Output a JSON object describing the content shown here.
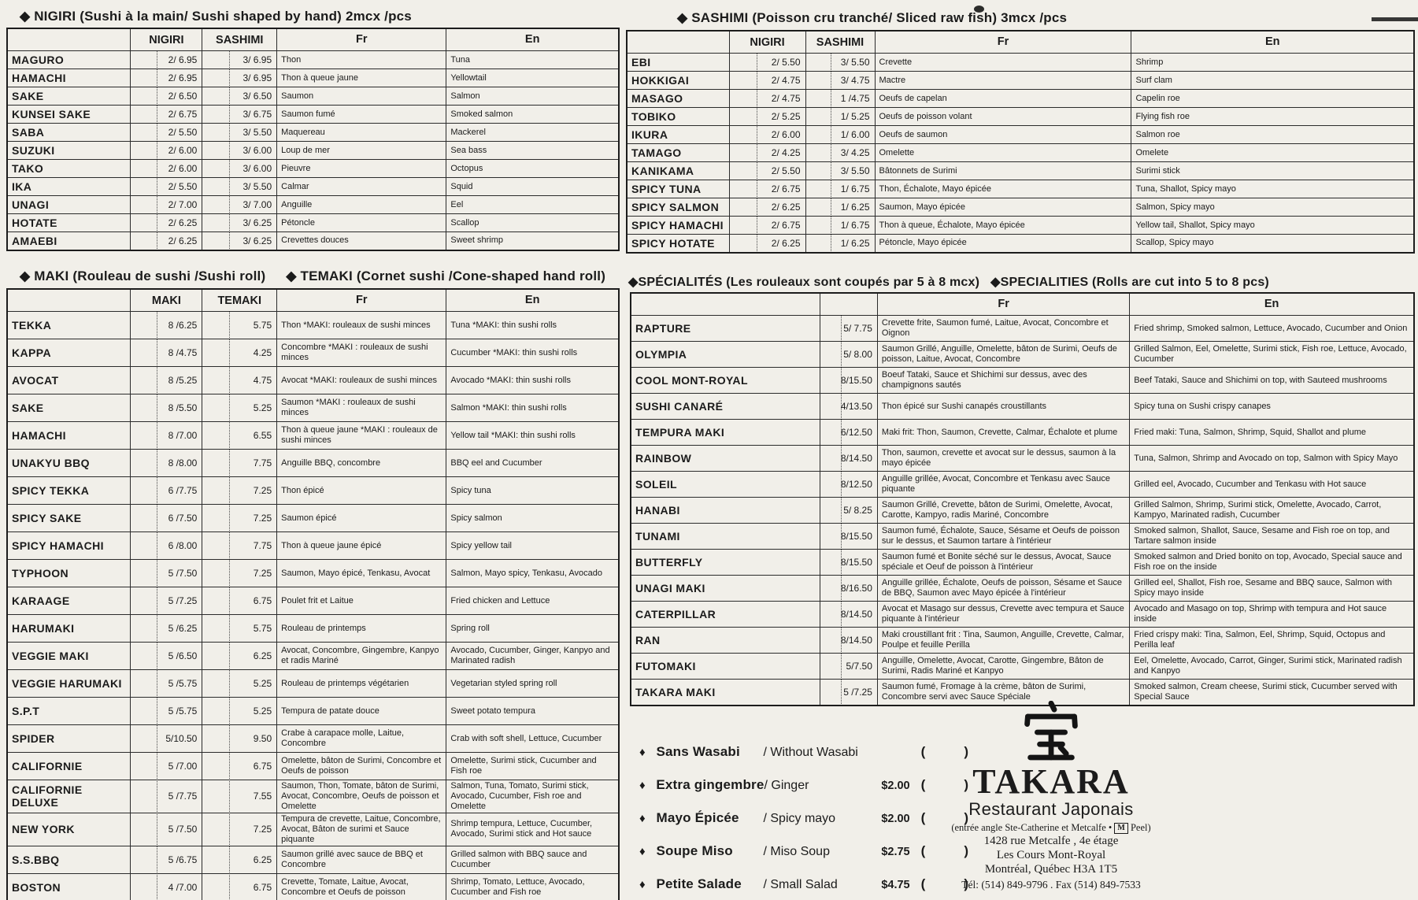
{
  "colors": {
    "paper": "#f1efe9",
    "ink": "#1b1b1b"
  },
  "tables": {
    "nigiri": {
      "title": "◆ NIGIRI (Sushi à la main/ Sushi shaped by hand) 2mcx /pcs",
      "columns": [
        "",
        "NIGIRI",
        "SASHIMI",
        "Fr",
        "En"
      ],
      "keys": [
        "name",
        "p1",
        "p2",
        "fr",
        "en"
      ],
      "rows": [
        {
          "name": "MAGURO",
          "p1": "2/ 6.95",
          "p2": "3/ 6.95",
          "fr": "Thon",
          "en": "Tuna"
        },
        {
          "name": "HAMACHI",
          "p1": "2/ 6.95",
          "p2": "3/ 6.95",
          "fr": "Thon à queue jaune",
          "en": "Yellowtail"
        },
        {
          "name": "SAKE",
          "p1": "2/ 6.50",
          "p2": "3/ 6.50",
          "fr": "Saumon",
          "en": "Salmon"
        },
        {
          "name": "KUNSEI SAKE",
          "p1": "2/ 6.75",
          "p2": "3/ 6.75",
          "fr": "Saumon fumé",
          "en": "Smoked salmon"
        },
        {
          "name": "SABA",
          "p1": "2/ 5.50",
          "p2": "3/ 5.50",
          "fr": "Maquereau",
          "en": "Mackerel"
        },
        {
          "name": "SUZUKI",
          "p1": "2/ 6.00",
          "p2": "3/ 6.00",
          "fr": "Loup de mer",
          "en": "Sea bass"
        },
        {
          "name": "TAKO",
          "p1": "2/ 6.00",
          "p2": "3/ 6.00",
          "fr": "Pieuvre",
          "en": "Octopus"
        },
        {
          "name": "IKA",
          "p1": "2/ 5.50",
          "p2": "3/ 5.50",
          "fr": "Calmar",
          "en": "Squid"
        },
        {
          "name": "UNAGI",
          "p1": "2/ 7.00",
          "p2": "3/ 7.00",
          "fr": "Anguille",
          "en": "Eel"
        },
        {
          "name": "HOTATE",
          "p1": "2/ 6.25",
          "p2": "3/ 6.25",
          "fr": "Pétoncle",
          "en": "Scallop"
        },
        {
          "name": "AMAEBI",
          "p1": "2/ 6.25",
          "p2": "3/ 6.25",
          "fr": "Crevettes douces",
          "en": "Sweet shrimp"
        }
      ]
    },
    "sashimi": {
      "title": "◆ SASHIMI (Poisson cru tranché/ Sliced raw fish) 3mcx /pcs",
      "columns": [
        "",
        "NIGIRI",
        "SASHIMI",
        "Fr",
        "En"
      ],
      "keys": [
        "name",
        "p1",
        "p2",
        "fr",
        "en"
      ],
      "rows": [
        {
          "name": "EBI",
          "p1": "2/ 5.50",
          "p2": "3/ 5.50",
          "fr": "Crevette",
          "en": "Shrimp"
        },
        {
          "name": "HOKKIGAI",
          "p1": "2/ 4.75",
          "p2": "3/ 4.75",
          "fr": "Mactre",
          "en": "Surf clam"
        },
        {
          "name": "MASAGO",
          "p1": "2/ 4.75",
          "p2": "1 /4.75",
          "fr": "Oeufs de capelan",
          "en": "Capelin roe"
        },
        {
          "name": "TOBIKO",
          "p1": "2/ 5.25",
          "p2": "1/ 5.25",
          "fr": "Oeufs de poisson volant",
          "en": "Flying fish roe"
        },
        {
          "name": "IKURA",
          "p1": "2/ 6.00",
          "p2": "1/ 6.00",
          "fr": "Oeufs de saumon",
          "en": "Salmon roe"
        },
        {
          "name": "TAMAGO",
          "p1": "2/ 4.25",
          "p2": "3/ 4.25",
          "fr": "Omelette",
          "en": "Omelete"
        },
        {
          "name": "KANIKAMA",
          "p1": "2/ 5.50",
          "p2": "3/ 5.50",
          "fr": "Bâtonnets de Surimi",
          "en": "Surimi stick"
        },
        {
          "name": "SPICY TUNA",
          "p1": "2/ 6.75",
          "p2": "1/ 6.75",
          "fr": "Thon, Échalote, Mayo épicée",
          "en": "Tuna, Shallot, Spicy mayo"
        },
        {
          "name": "SPICY SALMON",
          "p1": "2/ 6.25",
          "p2": "1/ 6.25",
          "fr": "Saumon, Mayo épicée",
          "en": "Salmon, Spicy mayo"
        },
        {
          "name": "SPICY HAMACHI",
          "p1": "2/ 6.75",
          "p2": "1/ 6.75",
          "fr": "Thon à queue, Échalote, Mayo épicée",
          "en": "Yellow tail, Shallot, Spicy mayo"
        },
        {
          "name": "SPICY HOTATE",
          "p1": "2/ 6.25",
          "p2": "1/ 6.25",
          "fr": "Pétoncle, Mayo épicée",
          "en": "Scallop, Spicy mayo"
        }
      ]
    },
    "maki": {
      "title_left": "◆ MAKI (Rouleau de sushi /Sushi roll)",
      "title_right": "◆ TEMAKI (Cornet sushi /Cone-shaped hand roll)",
      "columns": [
        "",
        "MAKI",
        "TEMAKI",
        "Fr",
        "En"
      ],
      "keys": [
        "name",
        "p1",
        "p2",
        "fr",
        "en"
      ],
      "rows": [
        {
          "name": "TEKKA",
          "p1": "8 /6.25",
          "p2": "5.75",
          "fr": "Thon *MAKI: rouleaux de sushi minces",
          "en": "Tuna *MAKI: thin sushi rolls"
        },
        {
          "name": "KAPPA",
          "p1": "8 /4.75",
          "p2": "4.25",
          "fr": "Concombre *MAKI : rouleaux de sushi minces",
          "en": "Cucumber *MAKI: thin sushi rolls"
        },
        {
          "name": "AVOCAT",
          "p1": "8 /5.25",
          "p2": "4.75",
          "fr": "Avocat *MAKI: rouleaux de sushi minces",
          "en": "Avocado *MAKI: thin sushi rolls"
        },
        {
          "name": "SAKE",
          "p1": "8 /5.50",
          "p2": "5.25",
          "fr": "Saumon *MAKI : rouleaux de sushi minces",
          "en": "Salmon *MAKI: thin sushi rolls"
        },
        {
          "name": "HAMACHI",
          "p1": "8 /7.00",
          "p2": "6.55",
          "fr": "Thon à queue jaune *MAKI : rouleaux de sushi minces",
          "en": "Yellow tail *MAKI: thin sushi rolls"
        },
        {
          "name": "UNAKYU BBQ",
          "p1": "8 /8.00",
          "p2": "7.75",
          "fr": "Anguille BBQ, concombre",
          "en": "BBQ eel and Cucumber"
        },
        {
          "name": "SPICY TEKKA",
          "p1": "6 /7.75",
          "p2": "7.25",
          "fr": "Thon épicé",
          "en": "Spicy tuna"
        },
        {
          "name": "SPICY SAKE",
          "p1": "6 /7.50",
          "p2": "7.25",
          "fr": "Saumon épicé",
          "en": "Spicy salmon"
        },
        {
          "name": "SPICY HAMACHI",
          "p1": "6 /8.00",
          "p2": "7.75",
          "fr": "Thon à queue jaune épicé",
          "en": "Spicy yellow tail"
        },
        {
          "name": "TYPHOON",
          "p1": "5 /7.50",
          "p2": "7.25",
          "fr": "Saumon, Mayo épicé, Tenkasu, Avocat",
          "en": "Salmon, Mayo spicy, Tenkasu, Avocado"
        },
        {
          "name": "KARAAGE",
          "p1": "5 /7.25",
          "p2": "6.75",
          "fr": "Poulet frit et Laitue",
          "en": "Fried chicken and Lettuce"
        },
        {
          "name": "HARUMAKI",
          "p1": "5 /6.25",
          "p2": "5.75",
          "fr": "Rouleau de printemps",
          "en": "Spring roll"
        },
        {
          "name": "VEGGIE MAKI",
          "p1": "5 /6.50",
          "p2": "6.25",
          "fr": "Avocat, Concombre, Gingembre, Kanpyo et radis Mariné",
          "en": "Avocado, Cucumber, Ginger, Kanpyo and Marinated radish"
        },
        {
          "name": "VEGGIE HARUMAKI",
          "p1": "5 /5.75",
          "p2": "5.25",
          "fr": "Rouleau de printemps végétarien",
          "en": "Vegetarian styled spring roll"
        },
        {
          "name": "S.P.T",
          "p1": "5 /5.75",
          "p2": "5.25",
          "fr": "Tempura de patate douce",
          "en": "Sweet potato tempura"
        },
        {
          "name": "SPIDER",
          "p1": "5/10.50",
          "p2": "9.50",
          "fr": "Crabe à carapace molle, Laitue, Concombre",
          "en": "Crab with soft shell, Lettuce, Cucumber"
        },
        {
          "name": "CALIFORNIE",
          "p1": "5 /7.00",
          "p2": "6.75",
          "fr": "Omelette, bâton de Surimi, Concombre et Oeufs de poisson",
          "en": "Omelette, Surimi stick, Cucumber and Fish roe"
        },
        {
          "name": "CALIFORNIE DELUXE",
          "p1": "5 /7.75",
          "p2": "7.55",
          "fr": "Saumon, Thon, Tomate, bâton de Surimi, Avocat, Concombre, Oeufs de poisson et Omelette",
          "en": "Salmon, Tuna, Tomato, Surimi stick, Avocado, Cucumber, Fish roe and Omelette"
        },
        {
          "name": "NEW YORK",
          "p1": "5 /7.50",
          "p2": "7.25",
          "fr": "Tempura de crevette, Laitue, Concombre, Avocat, Bâton de surimi et Sauce piquante",
          "en": "Shrimp tempura, Lettuce, Cucumber, Avocado, Surimi stick and Hot sauce"
        },
        {
          "name": "S.S.BBQ",
          "p1": "5 /6.75",
          "p2": "6.25",
          "fr": "Saumon grillé avec sauce de BBQ et Concombre",
          "en": "Grilled salmon with BBQ sauce and Cucumber"
        },
        {
          "name": "BOSTON",
          "p1": "4 /7.00",
          "p2": "6.75",
          "fr": "Crevette, Tomate, Laitue, Avocat, Concombre et Oeufs de poisson",
          "en": "Shrimp, Tomato, Lettuce, Avocado, Cucumber and Fish roe"
        }
      ]
    },
    "specialties": {
      "title_left": "◆SPÉCIALITÉS (Les rouleaux sont coupés par 5 à 8 mcx)",
      "title_right": "◆SPECIALITIES (Rolls are cut into 5 to 8 pcs)",
      "columns": [
        "",
        "",
        "Fr",
        "En"
      ],
      "keys": [
        "name",
        "p1",
        "fr",
        "en"
      ],
      "rows": [
        {
          "name": "RAPTURE",
          "p1": "5/ 7.75",
          "fr": "Crevette frite, Saumon fumé, Laitue, Avocat, Concombre et Oignon",
          "en": "Fried shrimp, Smoked salmon, Lettuce, Avocado, Cucumber and Onion"
        },
        {
          "name": "OLYMPIA",
          "p1": "5/ 8.00",
          "fr": "Saumon Grillé, Anguille, Omelette, bâton de Surimi, Oeufs de poisson, Laitue, Avocat, Concombre",
          "en": "Grilled Salmon, Eel, Omelette, Surimi stick, Fish roe, Lettuce, Avocado, Cucumber"
        },
        {
          "name": "COOL MONT-ROYAL",
          "p1": "8/15.50",
          "fr": "Boeuf Tataki, Sauce et Shichimi sur dessus, avec des champignons sautés",
          "en": "Beef Tataki, Sauce and Shichimi on top, with Sauteed mushrooms"
        },
        {
          "name": "SUSHI CANARÉ",
          "p1": "4/13.50",
          "fr": "Thon épicé sur Sushi canapés croustillants",
          "en": "Spicy tuna on Sushi crispy canapes"
        },
        {
          "name": "TEMPURA MAKI",
          "p1": "6/12.50",
          "fr": "Maki frit: Thon, Saumon, Crevette, Calmar, Échalote et plume",
          "en": "Fried maki: Tuna, Salmon, Shrimp, Squid, Shallot and plume"
        },
        {
          "name": "RAINBOW",
          "p1": "8/14.50",
          "fr": "Thon, saumon, crevette et avocat sur le dessus, saumon à la mayo épicée",
          "en": "Tuna, Salmon, Shrimp and Avocado on top, Salmon with Spicy Mayo"
        },
        {
          "name": "SOLEIL",
          "p1": "8/12.50",
          "fr": "Anguille grillée, Avocat, Concombre et Tenkasu avec Sauce piquante",
          "en": "Grilled eel, Avocado, Cucumber and Tenkasu with Hot sauce"
        },
        {
          "name": "HANABI",
          "p1": "5/ 8.25",
          "fr": "Saumon Grillé, Crevette, bâton de Surimi, Omelette, Avocat, Carotte, Kampyo, radis Mariné, Concombre",
          "en": "Grilled Salmon, Shrimp, Surimi stick, Omelette, Avocado, Carrot, Kampyo, Marinated radish, Cucumber"
        },
        {
          "name": "TUNAMI",
          "p1": "8/15.50",
          "fr": "Saumon fumé, Échalote, Sauce, Sésame et Oeufs de poisson sur le dessus, et Saumon tartare à l'intérieur",
          "en": "Smoked salmon, Shallot, Sauce, Sesame and Fish roe on top, and Tartare salmon inside"
        },
        {
          "name": "BUTTERFLY",
          "p1": "8/15.50",
          "fr": "Saumon fumé et Bonite séché sur le dessus, Avocat, Sauce spéciale et Oeuf de poisson à l'intérieur",
          "en": "Smoked salmon and Dried bonito on top, Avocado, Special sauce and Fish roe on the inside"
        },
        {
          "name": "UNAGI MAKI",
          "p1": "8/16.50",
          "fr": "Anguille grillée, Échalote, Oeufs de poisson, Sésame et Sauce de BBQ, Saumon avec Mayo épicée à l'intérieur",
          "en": "Grilled eel, Shallot, Fish roe, Sesame and BBQ sauce, Salmon with Spicy mayo inside"
        },
        {
          "name": "CATERPILLAR",
          "p1": "8/14.50",
          "fr": "Avocat et Masago sur dessus, Crevette avec tempura et Sauce piquante à l'intérieur",
          "en": "Avocado and Masago on top, Shrimp with tempura and Hot sauce inside"
        },
        {
          "name": "RAN",
          "p1": "8/14.50",
          "fr": "Maki croustillant frit : Tina, Saumon, Anguille, Crevette, Calmar, Poulpe et feuille Perilla",
          "en": "Fried crispy maki: Tina, Salmon, Eel, Shrimp, Squid, Octopus and Perilla leaf"
        },
        {
          "name": "FUTOMAKI",
          "p1": "5/7.50",
          "fr": "Anguille, Omelette, Avocat, Carotte, Gingembre, Bâton de Surimi, Radis Mariné et Kanpyo",
          "en": "Eel, Omelette, Avocado, Carrot, Ginger, Surimi stick, Marinated radish and Kanpyo"
        },
        {
          "name": "TAKARA MAKI",
          "p1": "5 /7.25",
          "fr": "Saumon fumé, Fromage à la crème, bâton de Surimi, Concombre servi avec Sauce Spéciale",
          "en": "Smoked salmon, Cream cheese, Surimi stick, Cucumber served with Special Sauce"
        }
      ]
    }
  },
  "extras": {
    "bullet": "♦",
    "items": [
      {
        "fr": "Sans Wasabi",
        "en": "/ Without Wasabi",
        "price": "",
        "box": "(       )"
      },
      {
        "fr": "Extra gingembre",
        "en": "/ Ginger",
        "price": "$2.00",
        "box": "(       )"
      },
      {
        "fr": "Mayo Épicée",
        "en": "/ Spicy mayo",
        "price": "$2.00",
        "box": "(       )"
      },
      {
        "fr": "Soupe Miso",
        "en": "/ Miso Soup",
        "price": "$2.75",
        "box": "(       )"
      },
      {
        "fr": "Petite Salade",
        "en": "/ Small Salad",
        "price": "$4.75",
        "box": "(       )"
      }
    ]
  },
  "restaurant": {
    "logo_text": "TAKARA",
    "subtitle": "Restaurant Japonais",
    "entrance_pre": "(entrée angle Ste-Catherine et Metcalfe •",
    "metro": "M",
    "entrance_post": "Peel)",
    "address1": "1428 rue Metcalfe , 4e étage",
    "address2": "Les Cours Mont-Royal",
    "address3": "Montréal, Québec H3A 1T5",
    "phone": "Tél: (514) 849-9796 . Fax (514) 849-7533"
  }
}
